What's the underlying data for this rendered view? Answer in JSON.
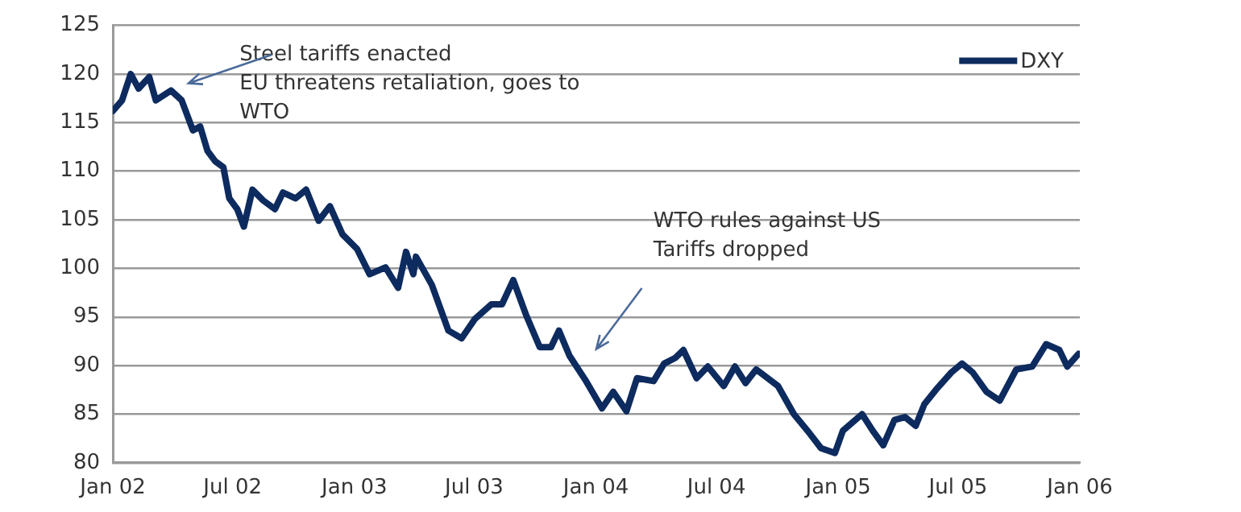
{
  "chart_data": {
    "type": "line",
    "x": [
      "2002-01-01",
      "2002-01-15",
      "2002-01-28",
      "2002-02-09",
      "2002-02-25",
      "2002-03-07",
      "2002-03-30",
      "2002-04-15",
      "2002-05-02",
      "2002-05-13",
      "2002-05-24",
      "2002-06-05",
      "2002-06-17",
      "2002-06-26",
      "2002-07-08",
      "2002-07-18",
      "2002-07-31",
      "2002-08-16",
      "2002-09-03",
      "2002-09-15",
      "2002-10-04",
      "2002-10-20",
      "2002-11-08",
      "2002-11-25",
      "2002-12-14",
      "2003-01-05",
      "2003-01-24",
      "2003-02-17",
      "2003-03-08",
      "2003-03-20",
      "2003-03-31",
      "2003-04-04",
      "2003-04-28",
      "2003-05-23",
      "2003-06-12",
      "2003-07-02",
      "2003-07-27",
      "2003-08-12",
      "2003-08-29",
      "2003-09-18",
      "2003-10-08",
      "2003-10-25",
      "2003-11-06",
      "2003-11-22",
      "2003-12-17",
      "2004-01-10",
      "2004-01-27",
      "2004-02-16",
      "2004-03-03",
      "2004-03-28",
      "2004-04-13",
      "2004-04-30",
      "2004-05-12",
      "2004-06-01",
      "2004-06-18",
      "2004-07-12",
      "2004-07-29",
      "2004-08-14",
      "2004-08-30",
      "2004-10-02",
      "2004-10-26",
      "2004-11-19",
      "2004-12-06",
      "2004-12-27",
      "2005-01-08",
      "2005-02-06",
      "2005-02-22",
      "2005-03-10",
      "2005-03-27",
      "2005-04-12",
      "2005-04-28",
      "2005-05-11",
      "2005-05-31",
      "2005-06-21",
      "2005-07-07",
      "2005-07-23",
      "2005-08-13",
      "2005-09-02",
      "2005-09-27",
      "2005-10-21",
      "2005-11-11",
      "2005-12-01",
      "2005-12-13",
      "2005-12-30"
    ],
    "series": [
      {
        "name": "DXY",
        "color": "#0d2b5e",
        "values": [
          116.2,
          117.3,
          120.0,
          118.5,
          119.7,
          117.3,
          118.3,
          117.3,
          114.2,
          114.6,
          112.1,
          111.0,
          110.4,
          107.2,
          106.1,
          104.3,
          108.1,
          107.0,
          106.1,
          107.8,
          107.2,
          108.1,
          104.9,
          106.4,
          103.5,
          102.0,
          99.4,
          100.1,
          98.0,
          101.7,
          99.4,
          101.2,
          98.3,
          93.6,
          92.8,
          94.8,
          96.3,
          96.3,
          98.8,
          95.1,
          91.9,
          91.9,
          93.6,
          91.0,
          88.4,
          85.6,
          87.3,
          85.3,
          88.7,
          88.4,
          90.2,
          90.8,
          91.6,
          88.7,
          89.9,
          87.9,
          89.9,
          88.2,
          89.6,
          87.9,
          85.0,
          83.0,
          81.5,
          81.0,
          83.3,
          85.0,
          83.3,
          81.8,
          84.4,
          84.7,
          83.8,
          86.0,
          87.7,
          89.3,
          90.2,
          89.3,
          87.3,
          86.4,
          89.6,
          89.9,
          92.2,
          91.6,
          89.9,
          91.2
        ]
      }
    ],
    "xlim": [
      "2002-01-01",
      "2006-01-01"
    ],
    "xticks": [
      {
        "value": "2002-01-01",
        "label": "Jan 02"
      },
      {
        "value": "2002-07-01",
        "label": "Jul 02"
      },
      {
        "value": "2003-01-01",
        "label": "Jan 03"
      },
      {
        "value": "2003-07-01",
        "label": "Jul 03"
      },
      {
        "value": "2004-01-01",
        "label": "Jan 04"
      },
      {
        "value": "2004-07-01",
        "label": "Jul 04"
      },
      {
        "value": "2005-01-01",
        "label": "Jan 05"
      },
      {
        "value": "2005-07-01",
        "label": "Jul 05"
      },
      {
        "value": "2006-01-01",
        "label": "Jan 06"
      }
    ],
    "ylim": [
      80,
      125
    ],
    "yticks": [
      80,
      85,
      90,
      95,
      100,
      105,
      110,
      115,
      120,
      125
    ],
    "grid": "y",
    "legend": "top right",
    "annotations": [
      "Steel tariffs enacted\nEU threatens retaliation, goes to\nWTO",
      "WTO rules against US\nTariffs dropped"
    ]
  }
}
